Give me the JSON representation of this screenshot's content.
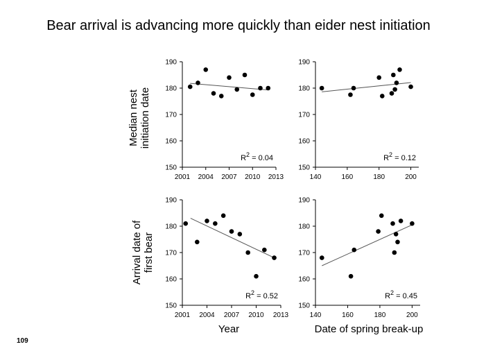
{
  "title": "Bear arrival is advancing more quickly than eider nest initiation",
  "slide_number": "109",
  "row_labels": {
    "top": [
      "Median nest",
      "initiation date"
    ],
    "bottom": [
      "Arrival date of",
      "first bear"
    ]
  },
  "column_labels": {
    "left": "Year",
    "right": "Date of spring break-up"
  },
  "chart_data": [
    {
      "id": "nest-vs-year",
      "type": "scatter",
      "xlabel": "",
      "ylabel": "",
      "xlim": [
        2001,
        2013
      ],
      "ylim": [
        150,
        190
      ],
      "xticks": [
        2001,
        2004,
        2007,
        2010,
        2013
      ],
      "yticks": [
        150,
        160,
        170,
        180,
        190
      ],
      "points": [
        {
          "x": 2002,
          "y": 180.5
        },
        {
          "x": 2003,
          "y": 182
        },
        {
          "x": 2004,
          "y": 187
        },
        {
          "x": 2005,
          "y": 178
        },
        {
          "x": 2006,
          "y": 177
        },
        {
          "x": 2007,
          "y": 184
        },
        {
          "x": 2008,
          "y": 179.5
        },
        {
          "x": 2009,
          "y": 185
        },
        {
          "x": 2010,
          "y": 177.5
        },
        {
          "x": 2011,
          "y": 180
        },
        {
          "x": 2012,
          "y": 180
        }
      ],
      "trendline": [
        {
          "x": 2002,
          "y": 181.8
        },
        {
          "x": 2012,
          "y": 179.3
        }
      ],
      "r2": {
        "label": "R",
        "sup": "2",
        "value": " = 0.04"
      }
    },
    {
      "id": "nest-vs-breakup",
      "type": "scatter",
      "xlabel": "",
      "ylabel": "",
      "xlim": [
        140,
        205
      ],
      "ylim": [
        150,
        190
      ],
      "xticks": [
        140,
        160,
        180,
        200
      ],
      "yticks": [
        150,
        160,
        170,
        180,
        190
      ],
      "points": [
        {
          "x": 144,
          "y": 180
        },
        {
          "x": 162,
          "y": 177.5
        },
        {
          "x": 164,
          "y": 180
        },
        {
          "x": 180,
          "y": 184
        },
        {
          "x": 182,
          "y": 177
        },
        {
          "x": 188,
          "y": 178
        },
        {
          "x": 189,
          "y": 185
        },
        {
          "x": 190,
          "y": 179.5
        },
        {
          "x": 191,
          "y": 182
        },
        {
          "x": 193,
          "y": 187
        },
        {
          "x": 200,
          "y": 180.5
        }
      ],
      "trendline": [
        {
          "x": 144,
          "y": 178.6
        },
        {
          "x": 200,
          "y": 182.1
        }
      ],
      "r2": {
        "label": "R",
        "sup": "2",
        "value": " = 0.12"
      }
    },
    {
      "id": "bear-vs-year",
      "type": "scatter",
      "xlabel": "",
      "ylabel": "",
      "xlim": [
        2001,
        2013
      ],
      "ylim": [
        150,
        190
      ],
      "xticks": [
        2001,
        2004,
        2007,
        2010,
        2013
      ],
      "yticks": [
        150,
        160,
        170,
        180,
        190
      ],
      "points": [
        {
          "x": 2001.4,
          "y": 181
        },
        {
          "x": 2002.8,
          "y": 174
        },
        {
          "x": 2004,
          "y": 182
        },
        {
          "x": 2005,
          "y": 181
        },
        {
          "x": 2006,
          "y": 184
        },
        {
          "x": 2007,
          "y": 178
        },
        {
          "x": 2008,
          "y": 177
        },
        {
          "x": 2009,
          "y": 170
        },
        {
          "x": 2010,
          "y": 161
        },
        {
          "x": 2011,
          "y": 171
        },
        {
          "x": 2012.2,
          "y": 168
        }
      ],
      "trendline": [
        {
          "x": 2002,
          "y": 183
        },
        {
          "x": 2012.2,
          "y": 168
        }
      ],
      "r2": {
        "label": "R",
        "sup": "2",
        "value": " = 0.52"
      }
    },
    {
      "id": "bear-vs-breakup",
      "type": "scatter",
      "xlabel": "",
      "ylabel": "",
      "xlim": [
        140,
        205
      ],
      "ylim": [
        150,
        190
      ],
      "xticks": [
        140,
        160,
        180,
        200
      ],
      "yticks": [
        150,
        160,
        170,
        180,
        190
      ],
      "points": [
        {
          "x": 144,
          "y": 168
        },
        {
          "x": 162,
          "y": 161
        },
        {
          "x": 164,
          "y": 171
        },
        {
          "x": 179,
          "y": 178
        },
        {
          "x": 181,
          "y": 184
        },
        {
          "x": 188,
          "y": 181
        },
        {
          "x": 189,
          "y": 170
        },
        {
          "x": 190,
          "y": 177
        },
        {
          "x": 191,
          "y": 174
        },
        {
          "x": 193,
          "y": 182
        },
        {
          "x": 200,
          "y": 181
        }
      ],
      "trendline": [
        {
          "x": 144,
          "y": 165
        },
        {
          "x": 200,
          "y": 180.5
        }
      ],
      "r2": {
        "label": "R",
        "sup": "2",
        "value": " = 0.45"
      }
    }
  ]
}
